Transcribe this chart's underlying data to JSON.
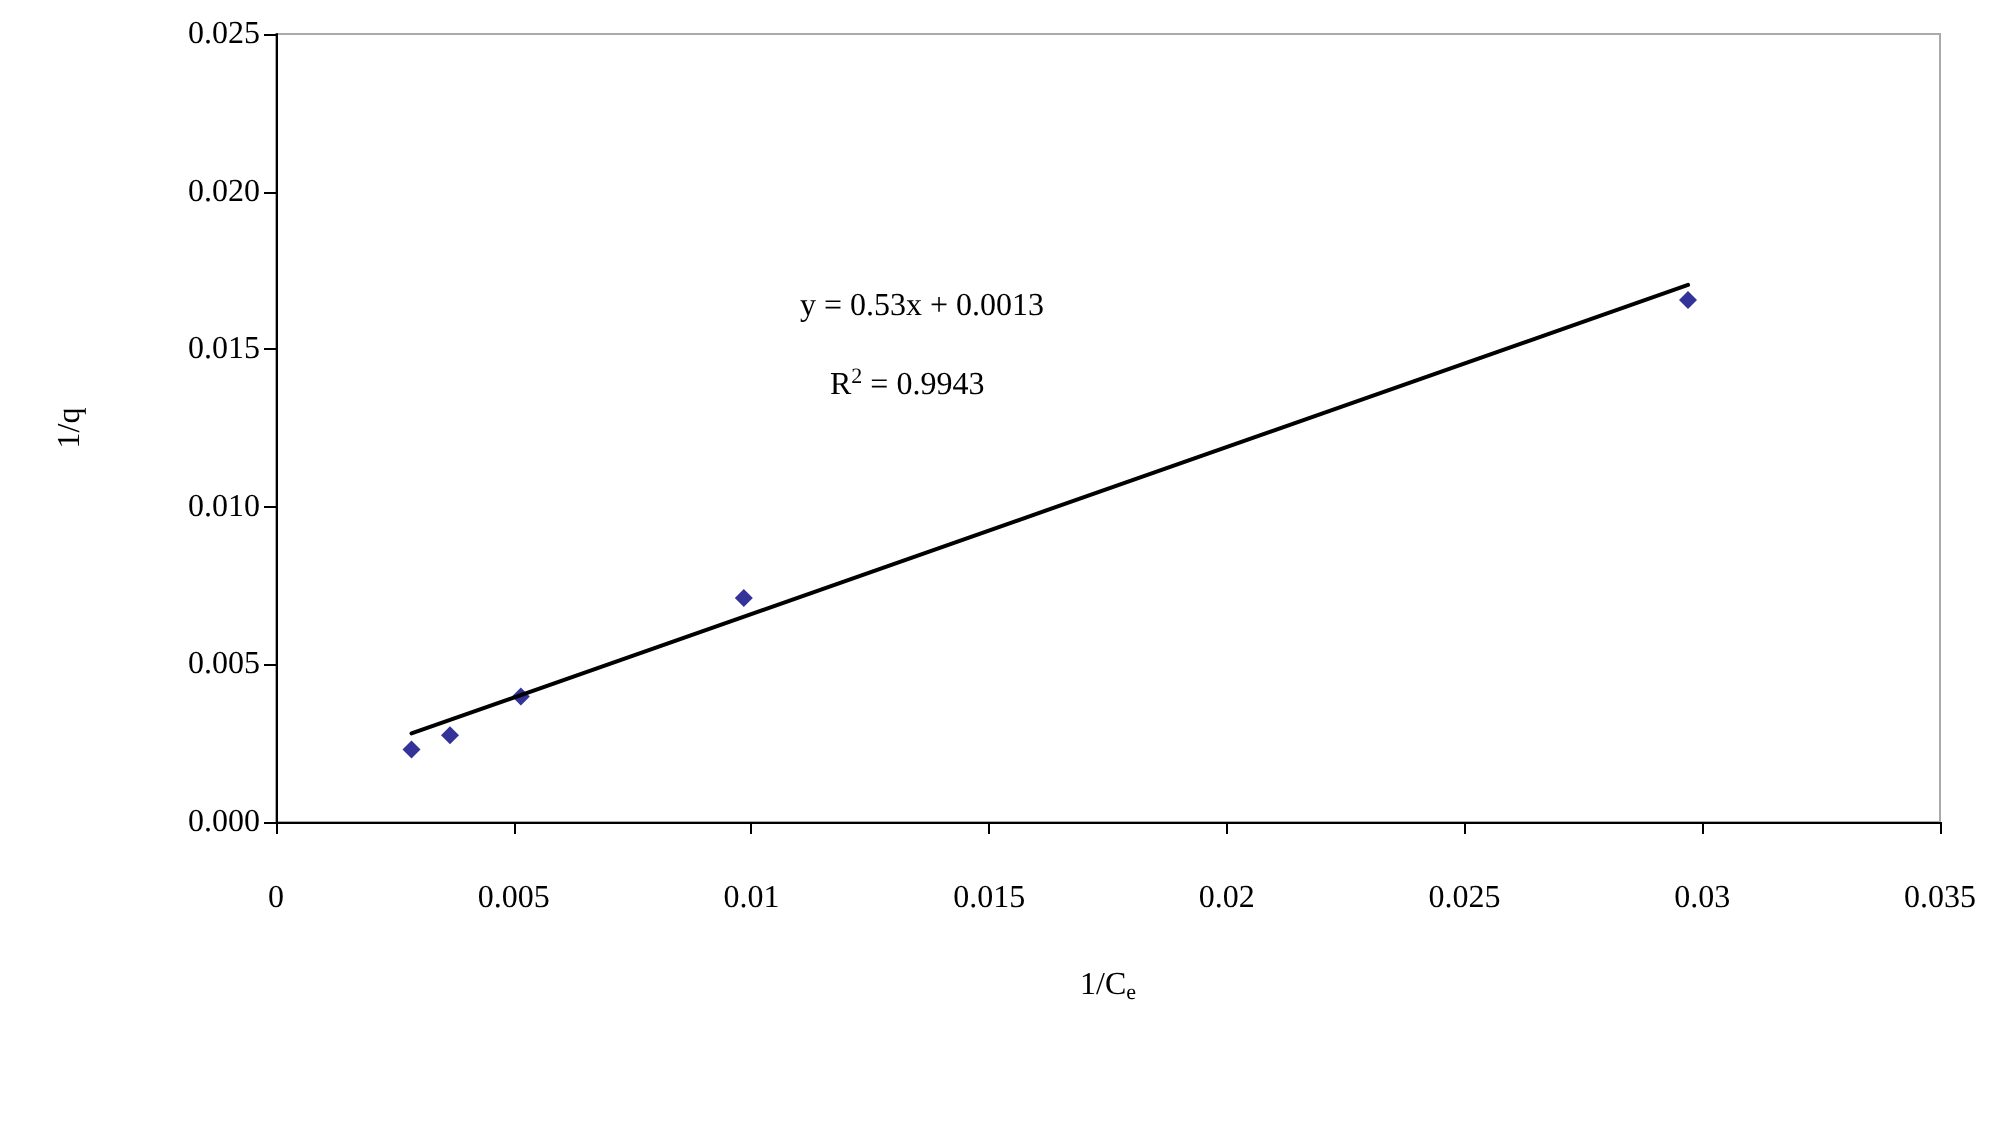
{
  "chart_data": {
    "type": "scatter",
    "xlabel": "1/C$_{e}$",
    "ylabel": "1/q",
    "xlim": [
      0,
      0.035
    ],
    "xticks": [
      0,
      0.005,
      0.01,
      0.015,
      0.02,
      0.025,
      0.03,
      0.035
    ],
    "ylim": [
      0,
      0.025
    ],
    "yticks": [
      {
        "value": 0,
        "label": "0.000"
      },
      {
        "value": 0.005,
        "label": "0.005"
      },
      {
        "value": 0.01,
        "label": "0.010"
      },
      {
        "value": 0.015,
        "label": "0.015"
      },
      {
        "value": 0.02,
        "label": "0.020"
      },
      {
        "value": 0.025,
        "label": "0.025"
      }
    ],
    "grid": false,
    "marker": "diamond",
    "series": [
      {
        "color": "#000080",
        "x": [
          0.00285,
          0.00366,
          0.00515,
          0.00984,
          0.0297
        ],
        "values": [
          0.0023,
          0.00275,
          0.00398,
          0.00711,
          0.01656
        ]
      },
      {
        "type": "line",
        "color": "#000000",
        "marker": "none",
        "line_style": "solid",
        "x": [
          0.00285,
          0.0297
        ],
        "values": [
          0.00281,
          0.01704
        ]
      }
    ],
    "annotations": [
      "y = 0.53x + 0.0013",
      "R$^{2}$ = 0.9943"
    ]
  }
}
